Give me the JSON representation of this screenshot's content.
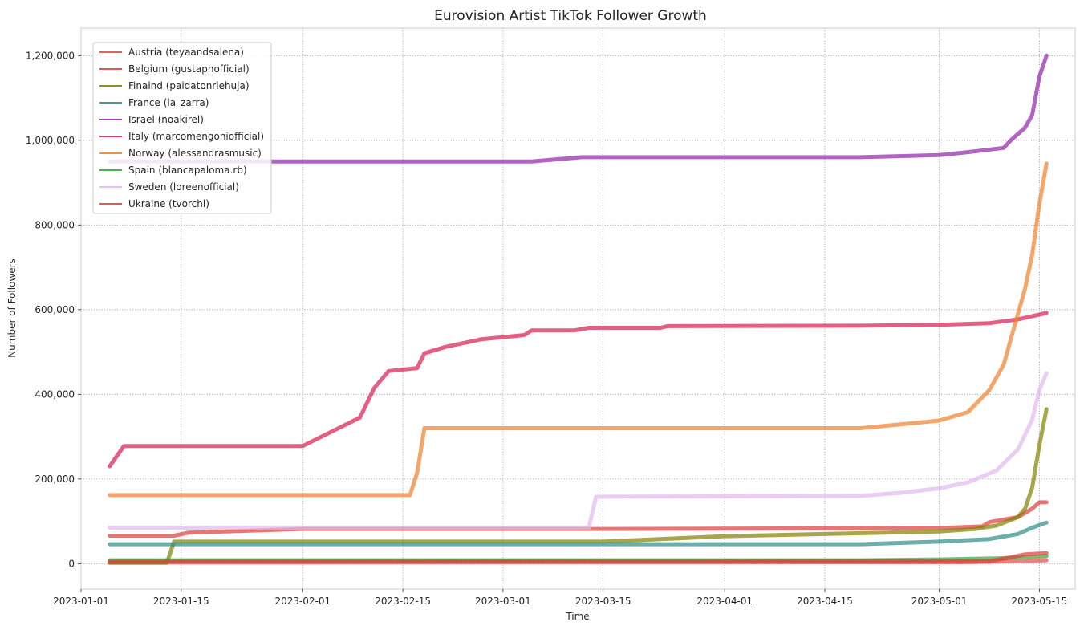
{
  "chart_data": {
    "type": "line",
    "title": "Eurovision Artist TikTok Follower Growth",
    "xlabel": "Time",
    "ylabel": "Number of Followers",
    "xlim": [
      "2023-01-01",
      "2023-05-20"
    ],
    "ylim": [
      -60000,
      1265000
    ],
    "x_ticks": [
      "2023-01-01",
      "2023-01-15",
      "2023-02-01",
      "2023-02-15",
      "2023-03-01",
      "2023-03-15",
      "2023-04-01",
      "2023-04-15",
      "2023-05-01",
      "2023-05-15"
    ],
    "y_ticks": [
      0,
      200000,
      400000,
      600000,
      800000,
      1000000,
      1200000
    ],
    "y_tick_labels": [
      "0",
      "200,000",
      "400,000",
      "600,000",
      "800,000",
      "1,000,000",
      "1,200,000"
    ],
    "grid": true,
    "legend_position": "upper-left",
    "series": [
      {
        "name": "Austria (teyaandsalena)",
        "color": "#e24a4a",
        "points": [
          [
            "2023-01-05",
            3000
          ],
          [
            "2023-05-05",
            3500
          ],
          [
            "2023-05-11",
            6000
          ],
          [
            "2023-05-16",
            8000
          ]
        ]
      },
      {
        "name": "Belgium (gustaphofficial)",
        "color": "#e03c3c",
        "points": [
          [
            "2023-01-05",
            66000
          ],
          [
            "2023-01-14",
            66000
          ],
          [
            "2023-01-16",
            73000
          ],
          [
            "2023-02-01",
            82000
          ],
          [
            "2023-03-15",
            82000
          ],
          [
            "2023-05-01",
            84000
          ],
          [
            "2023-05-07",
            88000
          ],
          [
            "2023-05-08",
            98000
          ],
          [
            "2023-05-12",
            110000
          ],
          [
            "2023-05-14",
            130000
          ],
          [
            "2023-05-15",
            145000
          ],
          [
            "2023-05-16",
            145000
          ]
        ]
      },
      {
        "name": "Finalnd (paidatonriehuja)",
        "color": "#808000",
        "points": [
          [
            "2023-01-05",
            2000
          ],
          [
            "2023-01-13",
            2000
          ],
          [
            "2023-01-14",
            52000
          ],
          [
            "2023-03-15",
            52000
          ],
          [
            "2023-04-01",
            65000
          ],
          [
            "2023-04-15",
            70000
          ],
          [
            "2023-05-01",
            76000
          ],
          [
            "2023-05-06",
            82000
          ],
          [
            "2023-05-09",
            90000
          ],
          [
            "2023-05-12",
            110000
          ],
          [
            "2023-05-13",
            130000
          ],
          [
            "2023-05-14",
            180000
          ],
          [
            "2023-05-15",
            280000
          ],
          [
            "2023-05-16",
            365000
          ]
        ]
      },
      {
        "name": "France (la_zarra)",
        "color": "#2e8b86",
        "points": [
          [
            "2023-01-05",
            46000
          ],
          [
            "2023-04-20",
            46000
          ],
          [
            "2023-05-01",
            52000
          ],
          [
            "2023-05-08",
            58000
          ],
          [
            "2023-05-12",
            70000
          ],
          [
            "2023-05-14",
            85000
          ],
          [
            "2023-05-16",
            97000
          ]
        ]
      },
      {
        "name": "Israel (noakirel)",
        "color": "#8e24aa",
        "points": [
          [
            "2023-01-05",
            950000
          ],
          [
            "2023-03-05",
            950000
          ],
          [
            "2023-03-12",
            960000
          ],
          [
            "2023-04-20",
            960000
          ],
          [
            "2023-05-01",
            965000
          ],
          [
            "2023-05-05",
            972000
          ],
          [
            "2023-05-10",
            982000
          ],
          [
            "2023-05-11",
            1000000
          ],
          [
            "2023-05-13",
            1030000
          ],
          [
            "2023-05-14",
            1060000
          ],
          [
            "2023-05-15",
            1150000
          ],
          [
            "2023-05-16",
            1200000
          ]
        ]
      },
      {
        "name": "Italy (marcomengoniofficial)",
        "color": "#d81b50",
        "points": [
          [
            "2023-01-05",
            230000
          ],
          [
            "2023-01-07",
            278000
          ],
          [
            "2023-02-01",
            278000
          ],
          [
            "2023-02-09",
            345000
          ],
          [
            "2023-02-11",
            415000
          ],
          [
            "2023-02-13",
            455000
          ],
          [
            "2023-02-17",
            462000
          ],
          [
            "2023-02-18",
            497000
          ],
          [
            "2023-02-21",
            512000
          ],
          [
            "2023-02-26",
            530000
          ],
          [
            "2023-03-04",
            540000
          ],
          [
            "2023-03-05",
            551000
          ],
          [
            "2023-03-11",
            551000
          ],
          [
            "2023-03-13",
            557000
          ],
          [
            "2023-03-23",
            557000
          ],
          [
            "2023-03-24",
            561000
          ],
          [
            "2023-04-20",
            562000
          ],
          [
            "2023-05-01",
            564000
          ],
          [
            "2023-05-08",
            568000
          ],
          [
            "2023-05-12",
            577000
          ],
          [
            "2023-05-16",
            592000
          ]
        ]
      },
      {
        "name": "Norway (alessandrasmusic)",
        "color": "#f07f2a",
        "points": [
          [
            "2023-01-05",
            162000
          ],
          [
            "2023-02-16",
            162000
          ],
          [
            "2023-02-17",
            215000
          ],
          [
            "2023-02-18",
            320000
          ],
          [
            "2023-04-20",
            320000
          ],
          [
            "2023-04-25",
            328000
          ],
          [
            "2023-05-01",
            338000
          ],
          [
            "2023-05-05",
            358000
          ],
          [
            "2023-05-08",
            410000
          ],
          [
            "2023-05-10",
            470000
          ],
          [
            "2023-05-11",
            530000
          ],
          [
            "2023-05-12",
            590000
          ],
          [
            "2023-05-13",
            650000
          ],
          [
            "2023-05-14",
            730000
          ],
          [
            "2023-05-15",
            850000
          ],
          [
            "2023-05-16",
            945000
          ]
        ]
      },
      {
        "name": "Spain (blancapaloma.rb)",
        "color": "#3aa43a",
        "points": [
          [
            "2023-01-05",
            8000
          ],
          [
            "2023-04-20",
            8000
          ],
          [
            "2023-05-01",
            10000
          ],
          [
            "2023-05-10",
            13000
          ],
          [
            "2023-05-16",
            18000
          ]
        ]
      },
      {
        "name": "Sweden (loreenofficial)",
        "color": "#e0b8f0",
        "points": [
          [
            "2023-01-05",
            85000
          ],
          [
            "2023-03-13",
            85000
          ],
          [
            "2023-03-14",
            158000
          ],
          [
            "2023-04-20",
            160000
          ],
          [
            "2023-04-26",
            168000
          ],
          [
            "2023-05-01",
            178000
          ],
          [
            "2023-05-05",
            192000
          ],
          [
            "2023-05-09",
            220000
          ],
          [
            "2023-05-12",
            270000
          ],
          [
            "2023-05-14",
            340000
          ],
          [
            "2023-05-15",
            410000
          ],
          [
            "2023-05-16",
            450000
          ]
        ]
      },
      {
        "name": "Ukraine (tvorchi)",
        "color": "#e23b3b",
        "points": [
          [
            "2023-01-05",
            5000
          ],
          [
            "2023-05-08",
            6000
          ],
          [
            "2023-05-11",
            15000
          ],
          [
            "2023-05-13",
            22000
          ],
          [
            "2023-05-16",
            25000
          ]
        ]
      }
    ]
  }
}
